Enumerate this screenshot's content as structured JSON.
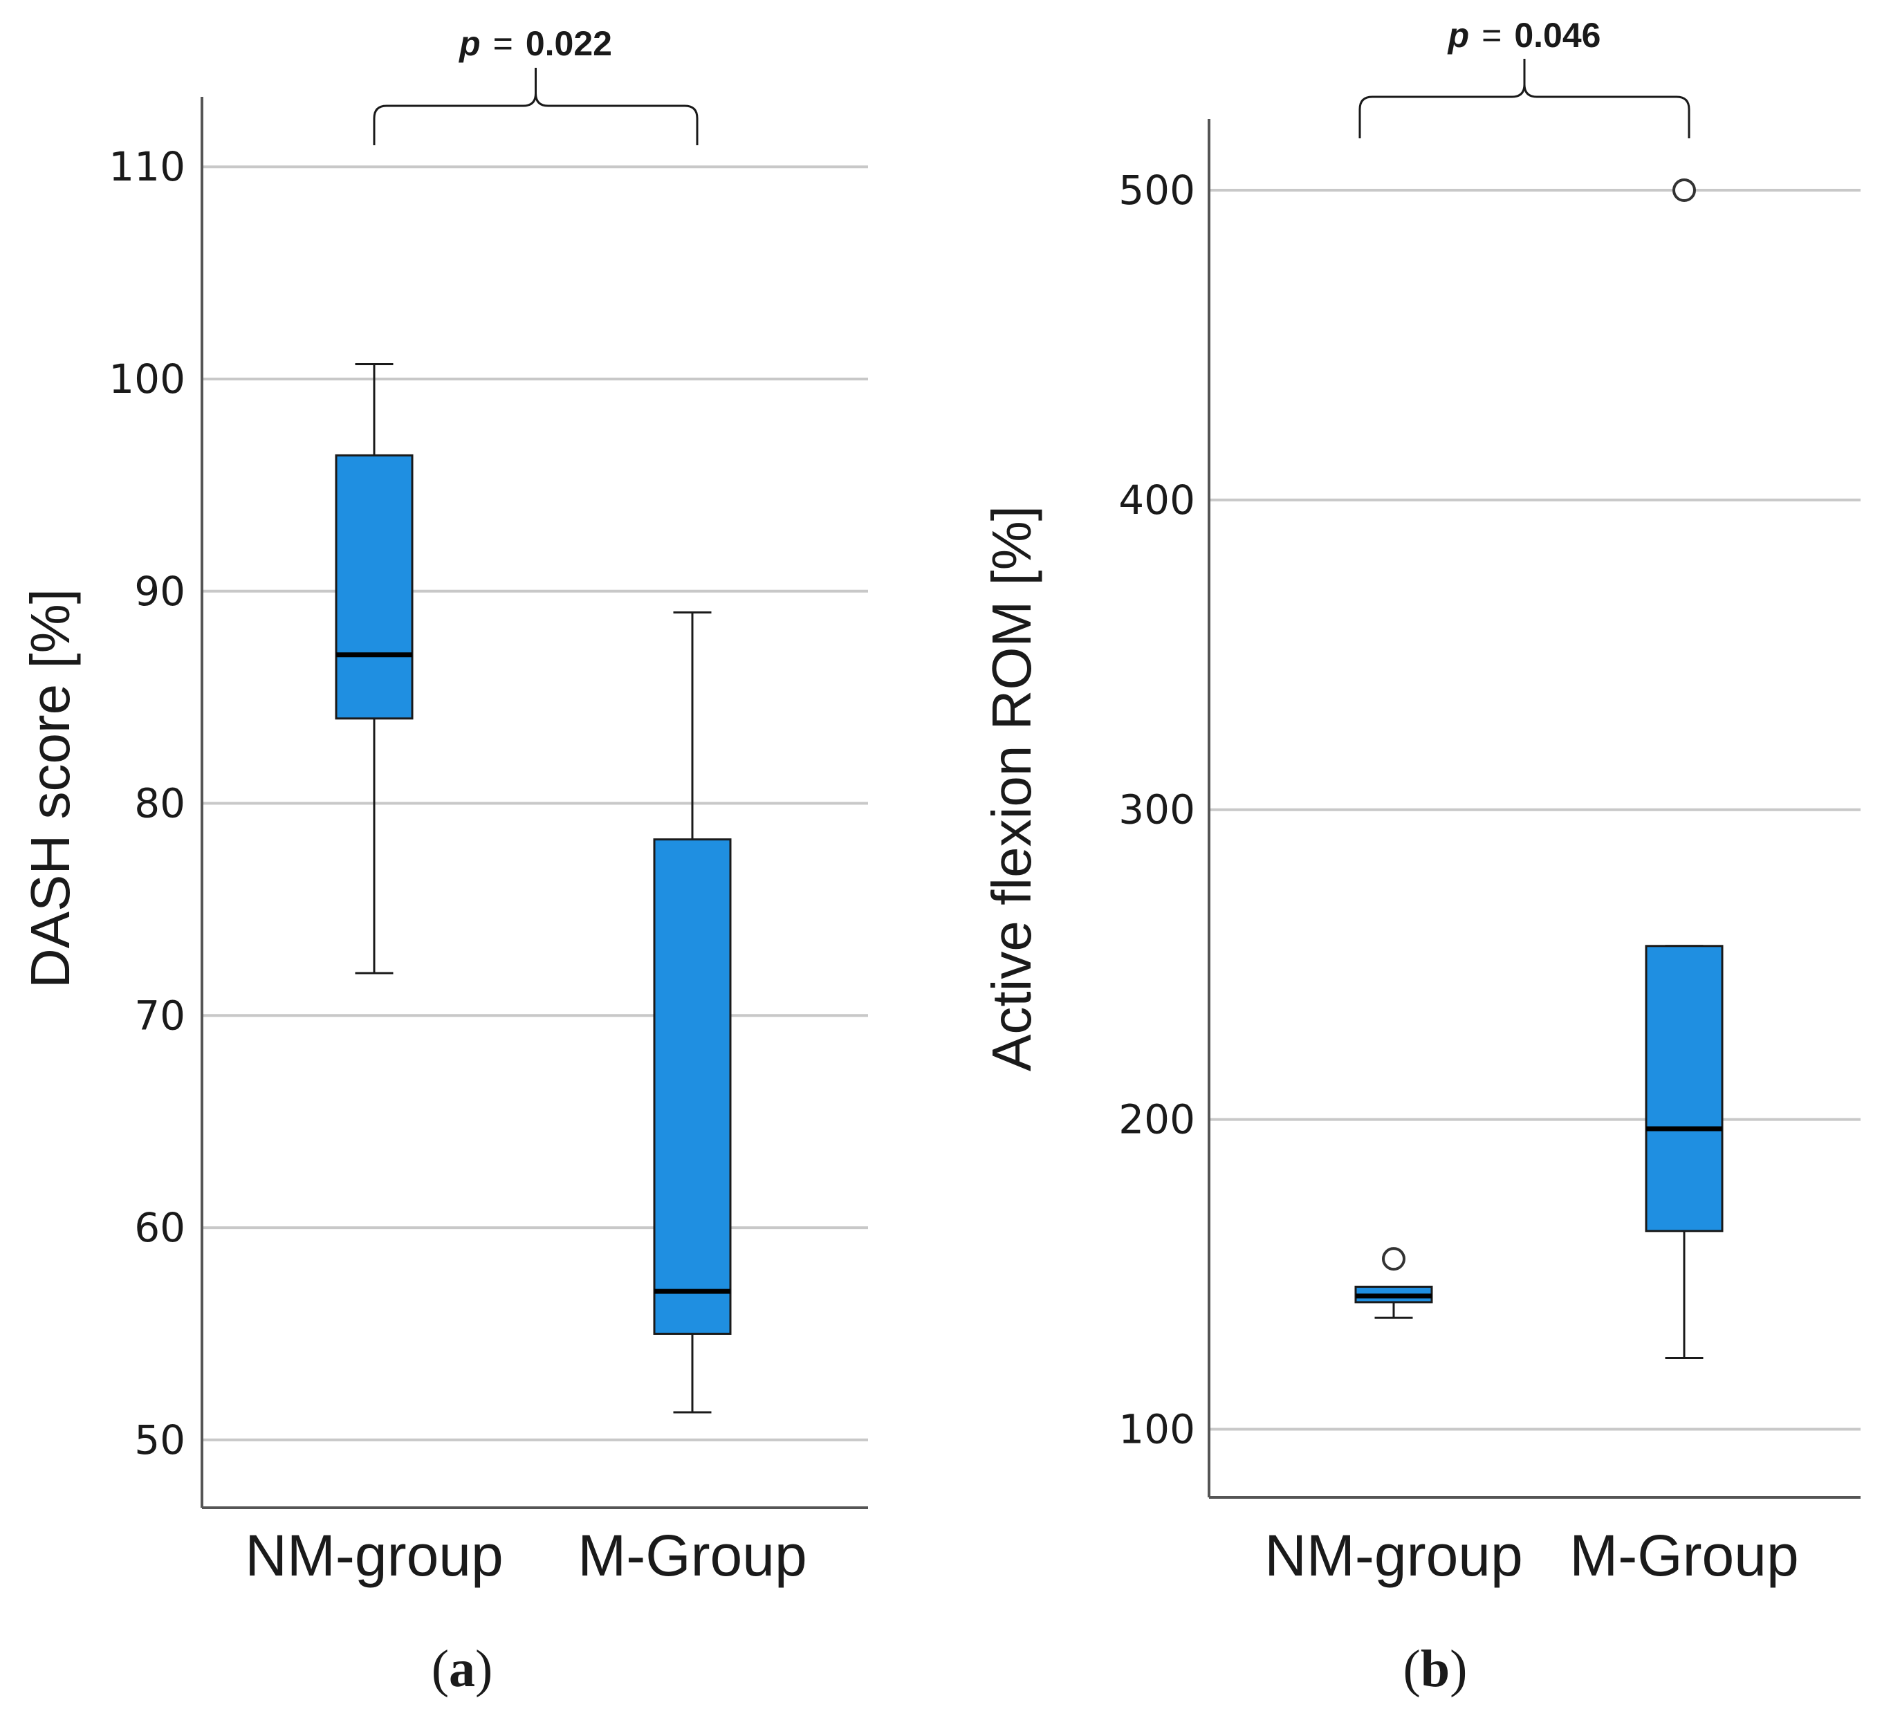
{
  "colors": {
    "box_fill": "#1f8fe1",
    "box_stroke": "#1a1a1a",
    "median": "#000000",
    "grid": "#c8c8c8",
    "axis": "#555555"
  },
  "chart_data": [
    {
      "type": "box",
      "panel_label": "a",
      "ylabel": "DASH score [%]",
      "xlabel": "",
      "categories": [
        "NM-group",
        "M-Group"
      ],
      "yticks": [
        50,
        60,
        70,
        80,
        90,
        100,
        110
      ],
      "ylim": [
        46.8,
        113.3
      ],
      "grid": true,
      "boxes": [
        {
          "name": "NM-group",
          "whisker_low": 72,
          "q1": 84,
          "median": 87,
          "q3": 96.4,
          "whisker_high": 100.7,
          "outliers": []
        },
        {
          "name": "M-Group",
          "whisker_low": 51.3,
          "q1": 55,
          "median": 57,
          "q3": 78.3,
          "whisker_high": 89,
          "outliers": []
        }
      ],
      "annotation": {
        "p_symbol": "p",
        "equals": "=",
        "value": "0.022",
        "between": [
          "NM-group",
          "M-Group"
        ]
      }
    },
    {
      "type": "box",
      "panel_label": "b",
      "ylabel": "Active flexion ROM [%]",
      "xlabel": "",
      "categories": [
        "NM-group",
        "M-Group"
      ],
      "yticks": [
        100,
        200,
        300,
        400,
        500
      ],
      "ylim": [
        78,
        523
      ],
      "grid": true,
      "boxes": [
        {
          "name": "NM-group",
          "whisker_low": 136,
          "q1": 141,
          "median": 143,
          "q3": 146,
          "whisker_high": 146,
          "outliers": [
            155
          ]
        },
        {
          "name": "M-Group",
          "whisker_low": 123,
          "q1": 164,
          "median": 197,
          "q3": 256,
          "whisker_high": 256,
          "outliers": [
            500
          ]
        }
      ],
      "annotation": {
        "p_symbol": "p",
        "equals": "=",
        "value": "0.046",
        "between": [
          "NM-group",
          "M-Group"
        ]
      }
    }
  ]
}
